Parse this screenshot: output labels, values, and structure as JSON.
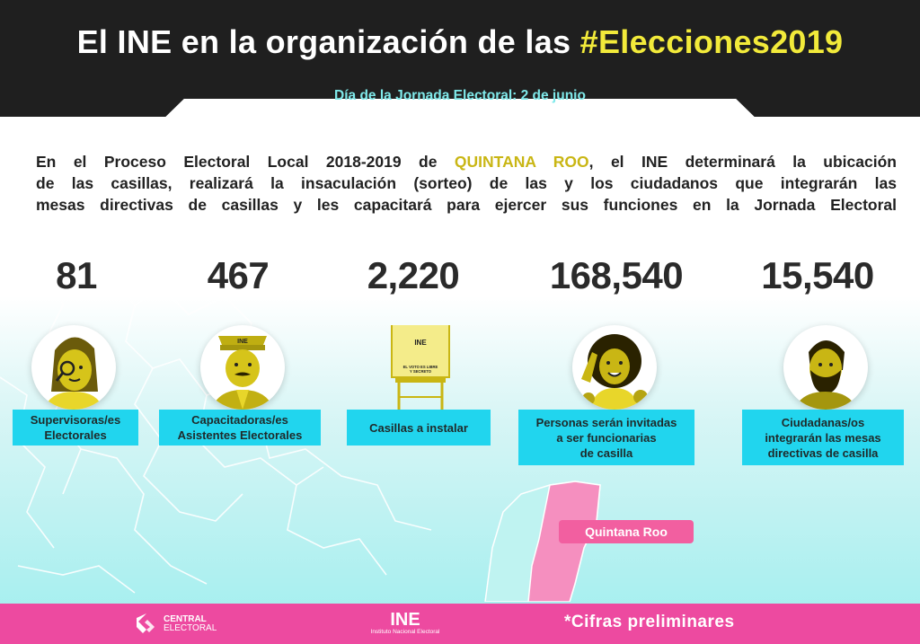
{
  "header": {
    "title_main": "El INE en la organización de las ",
    "title_highlight": "#Elecciones2019",
    "subtitle": "Día de la Jornada Electoral: 2 de junio"
  },
  "intro": {
    "line1_a": "En el Proceso Electoral Local 2018-2019 de ",
    "line1_state": "QUINTANA ROO",
    "line1_b": ", el INE determinará la ubicación",
    "line2": "de las casillas, realizará la insaculación (sorteo) de las y los ciudadanos que integrarán las",
    "line3": "mesas directivas de casillas y les capacitará para ejercer sus funciones en la Jornada Electoral"
  },
  "stats": [
    {
      "value": "81",
      "label_1": "Supervisoras/es",
      "label_2": "Electorales",
      "label_3": ""
    },
    {
      "value": "467",
      "label_1": "Capacitadoras/es",
      "label_2": "Asistentes Electorales",
      "label_3": ""
    },
    {
      "value": "2,220",
      "label_1": "Casillas a instalar",
      "label_2": "",
      "label_3": ""
    },
    {
      "value": "168,540",
      "label_1": "Personas serán invitadas",
      "label_2": "a ser funcionarias",
      "label_3": "de casilla"
    },
    {
      "value": "15,540",
      "label_1": "Ciudadanas/os",
      "label_2": "integrarán las mesas",
      "label_3": "directivas de casilla"
    }
  ],
  "ballot_box": {
    "logo": "INE",
    "text_1": "EL VOTO ES LIBRE",
    "text_2": "Y SECRETO"
  },
  "map": {
    "state_label": "Quintana Roo"
  },
  "footer": {
    "ce_line1": "CENTRAL",
    "ce_line2": "ELECTORAL",
    "ine_logo": "INE",
    "ine_name": "Instituto Nacional Electoral",
    "note": "*Cifras preliminares"
  },
  "colors": {
    "header_bg": "#1f1f1f",
    "highlight_yellow": "#f2ea3a",
    "subtitle_cyan": "#7fe9ea",
    "label_cyan": "#21d5ee",
    "state_gold": "#c9b614",
    "figure_yellow": "#d6c41a",
    "footer_pink": "#ed4aa0",
    "quintana_pink": "#f25fa0"
  }
}
